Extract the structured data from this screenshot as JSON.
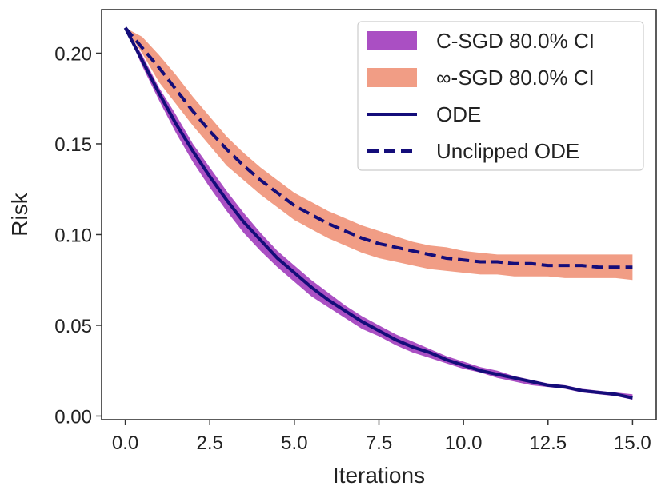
{
  "chart_data": {
    "type": "line",
    "title": "",
    "xlabel": "Iterations",
    "ylabel": "Risk",
    "xlim": [
      -0.7,
      15.7
    ],
    "ylim": [
      -0.002,
      0.224
    ],
    "xticks": [
      0.0,
      2.5,
      5.0,
      7.5,
      10.0,
      12.5,
      15.0
    ],
    "xtick_labels": [
      "0.0",
      "2.5",
      "5.0",
      "7.5",
      "10.0",
      "12.5",
      "15.0"
    ],
    "yticks": [
      0.0,
      0.05,
      0.1,
      0.15,
      0.2
    ],
    "ytick_labels": [
      "0.00",
      "0.05",
      "0.10",
      "0.15",
      "0.20"
    ],
    "grid": false,
    "legend_position": "top-right",
    "x": [
      0,
      0.5,
      1,
      1.5,
      2,
      2.5,
      3,
      3.5,
      4,
      4.5,
      5,
      5.5,
      6,
      6.5,
      7,
      7.5,
      8,
      8.5,
      9,
      9.5,
      10,
      10.5,
      11,
      11.5,
      12,
      12.5,
      13,
      13.5,
      14,
      14.5,
      15
    ],
    "series": [
      {
        "name": "C-SGD 80.0% CI",
        "kind": "band",
        "color": "#9b30b8",
        "lower": [
          0.214,
          0.193,
          0.174,
          0.156,
          0.14,
          0.126,
          0.113,
          0.101,
          0.091,
          0.082,
          0.074,
          0.066,
          0.06,
          0.054,
          0.048,
          0.044,
          0.039,
          0.035,
          0.032,
          0.029,
          0.026,
          0.024,
          0.021,
          0.019,
          0.017,
          0.016,
          0.015,
          0.013,
          0.012,
          0.011,
          0.009
        ],
        "upper": [
          0.214,
          0.199,
          0.181,
          0.166,
          0.15,
          0.137,
          0.124,
          0.112,
          0.101,
          0.091,
          0.083,
          0.075,
          0.068,
          0.061,
          0.055,
          0.05,
          0.045,
          0.041,
          0.037,
          0.033,
          0.03,
          0.027,
          0.025,
          0.022,
          0.02,
          0.018,
          0.017,
          0.015,
          0.014,
          0.013,
          0.012
        ]
      },
      {
        "name": "∞-SGD 80.0% CI",
        "kind": "band",
        "color": "#ef8c70",
        "lower": [
          0.214,
          0.2,
          0.184,
          0.172,
          0.16,
          0.149,
          0.138,
          0.13,
          0.122,
          0.115,
          0.108,
          0.103,
          0.098,
          0.094,
          0.09,
          0.087,
          0.085,
          0.083,
          0.081,
          0.08,
          0.079,
          0.078,
          0.078,
          0.077,
          0.077,
          0.077,
          0.076,
          0.076,
          0.076,
          0.076,
          0.075
        ],
        "upper": [
          0.214,
          0.209,
          0.199,
          0.188,
          0.176,
          0.165,
          0.154,
          0.145,
          0.137,
          0.13,
          0.123,
          0.118,
          0.113,
          0.109,
          0.105,
          0.102,
          0.099,
          0.096,
          0.094,
          0.093,
          0.091,
          0.09,
          0.089,
          0.089,
          0.089,
          0.089,
          0.089,
          0.089,
          0.089,
          0.089,
          0.089
        ]
      },
      {
        "name": "ODE",
        "kind": "line",
        "style": "solid",
        "color": "#140d7a",
        "values": [
          0.214,
          0.196,
          0.178,
          0.161,
          0.146,
          0.132,
          0.119,
          0.107,
          0.097,
          0.087,
          0.079,
          0.071,
          0.064,
          0.058,
          0.052,
          0.047,
          0.042,
          0.038,
          0.035,
          0.031,
          0.028,
          0.025,
          0.023,
          0.021,
          0.019,
          0.017,
          0.016,
          0.014,
          0.013,
          0.012,
          0.01
        ]
      },
      {
        "name": "Unclipped ODE",
        "kind": "line",
        "style": "dashed",
        "color": "#140d7a",
        "values": [
          0.214,
          0.203,
          0.192,
          0.18,
          0.168,
          0.157,
          0.147,
          0.138,
          0.13,
          0.123,
          0.116,
          0.111,
          0.106,
          0.102,
          0.098,
          0.095,
          0.093,
          0.091,
          0.089,
          0.087,
          0.086,
          0.085,
          0.085,
          0.084,
          0.084,
          0.083,
          0.083,
          0.083,
          0.082,
          0.082,
          0.082
        ]
      }
    ]
  }
}
